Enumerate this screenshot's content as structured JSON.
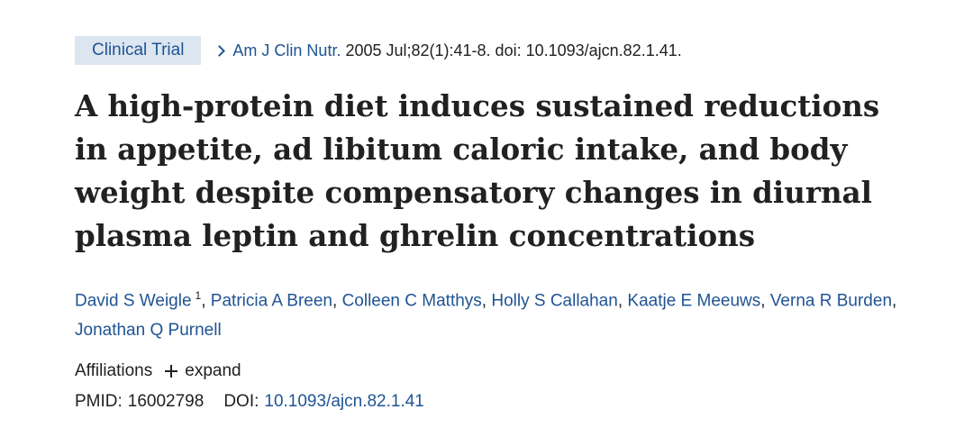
{
  "article": {
    "type_badge": "Clinical Trial",
    "journal": "Am J Clin Nutr.",
    "citation": " 2005 Jul;82(1):41-8. doi: 10.1093/ajcn.82.1.41.",
    "title": "A high-protein diet induces sustained reductions in appetite, ad libitum caloric intake, and body weight despite compensatory changes in diurnal plasma leptin and ghrelin concentrations",
    "authors": [
      {
        "name": "David S Weigle",
        "sup": "1"
      },
      {
        "name": "Patricia A Breen"
      },
      {
        "name": "Colleen C Matthys"
      },
      {
        "name": "Holly S Callahan"
      },
      {
        "name": "Kaatje E Meeuws"
      },
      {
        "name": "Verna R Burden"
      },
      {
        "name": "Jonathan Q Purnell"
      }
    ],
    "affiliations_label": "Affiliations",
    "expand_label": "expand",
    "pmid_label": "PMID:",
    "pmid": "16002798",
    "doi_label": "DOI:",
    "doi": "10.1093/ajcn.82.1.41"
  },
  "colors": {
    "link": "#205493",
    "badge_bg": "#dce6f0",
    "text": "#212121"
  },
  "icons": {
    "breadcrumb": "chevron-right-icon",
    "expand": "plus-icon"
  }
}
